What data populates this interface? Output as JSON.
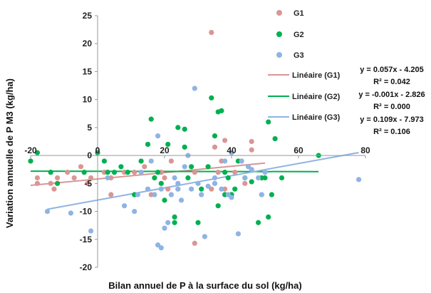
{
  "chart_data": {
    "type": "scatter",
    "xlabel": "Bilan annuel de P à la surface du sol (kg/ha)",
    "ylabel": "Variation annuelle de P M3  (kg/ha)",
    "xlim": [
      -20,
      80
    ],
    "ylim": [
      -20,
      25
    ],
    "x_ticks": [
      "-20",
      "0",
      "20",
      "40",
      "60",
      "80"
    ],
    "y_ticks": [
      "-20",
      "-15",
      "-10",
      "-5",
      "0",
      "5",
      "10",
      "15",
      "20",
      "25"
    ],
    "grid": false,
    "legend_position": "right",
    "series": [
      {
        "name": "G1",
        "color": "#d99694",
        "points": [
          [
            -18,
            -4
          ],
          [
            -18,
            -5
          ],
          [
            -14,
            -5
          ],
          [
            -13,
            -6
          ],
          [
            -12,
            -4
          ],
          [
            -9,
            -3
          ],
          [
            -7,
            -4
          ],
          [
            -5,
            -2
          ],
          [
            -3,
            -5
          ],
          [
            -2,
            -4
          ],
          [
            2,
            -3
          ],
          [
            4,
            -7
          ],
          [
            4,
            -4
          ],
          [
            8,
            -3
          ],
          [
            11,
            -3
          ],
          [
            14,
            -2
          ],
          [
            16,
            -7
          ],
          [
            17,
            -4
          ],
          [
            19,
            -3
          ],
          [
            20,
            -4
          ],
          [
            21,
            -6
          ],
          [
            22,
            -1
          ],
          [
            24,
            -6
          ],
          [
            29,
            -3
          ],
          [
            29,
            -15.7
          ],
          [
            34,
            -6
          ],
          [
            34,
            22
          ],
          [
            35,
            -5
          ],
          [
            35,
            1.5
          ],
          [
            36,
            -3
          ],
          [
            37,
            -1
          ],
          [
            38,
            -6
          ],
          [
            38,
            2.7
          ],
          [
            40,
            -7
          ],
          [
            41,
            -3
          ],
          [
            43,
            -1
          ],
          [
            44,
            -5
          ],
          [
            46,
            1
          ],
          [
            46,
            2.5
          ],
          [
            49,
            -7
          ]
        ]
      },
      {
        "name": "G2",
        "color": "#00b050",
        "points": [
          [
            -20,
            -1
          ],
          [
            -18,
            0.5
          ],
          [
            -14,
            -3
          ],
          [
            -12,
            -5
          ],
          [
            -4,
            -3
          ],
          [
            0,
            0.5
          ],
          [
            2,
            -1
          ],
          [
            3,
            -3
          ],
          [
            5,
            -3
          ],
          [
            7,
            -2
          ],
          [
            9,
            -3
          ],
          [
            11,
            -7
          ],
          [
            13,
            -1
          ],
          [
            15,
            2
          ],
          [
            16,
            6.5
          ],
          [
            17,
            -4
          ],
          [
            18,
            -3
          ],
          [
            19,
            -5
          ],
          [
            20,
            -8
          ],
          [
            21,
            2
          ],
          [
            23,
            -11
          ],
          [
            23,
            -12
          ],
          [
            24,
            5
          ],
          [
            26,
            4.7
          ],
          [
            26,
            1.5
          ],
          [
            27,
            -4
          ],
          [
            28,
            -2
          ],
          [
            30,
            -12
          ],
          [
            31,
            -6
          ],
          [
            33,
            -2
          ],
          [
            34,
            10.3
          ],
          [
            35,
            3.5
          ],
          [
            36,
            7.8
          ],
          [
            36,
            -9
          ],
          [
            37,
            8
          ],
          [
            38,
            -7
          ],
          [
            38,
            -3
          ],
          [
            39,
            -4
          ],
          [
            40,
            -7
          ],
          [
            41,
            -6
          ],
          [
            42,
            -1
          ],
          [
            44,
            -4
          ],
          [
            46,
            -4.7
          ],
          [
            48,
            -12
          ],
          [
            49,
            -4
          ],
          [
            50,
            -4
          ],
          [
            51,
            6
          ],
          [
            51,
            -11
          ],
          [
            52,
            -7
          ],
          [
            53,
            3
          ],
          [
            55,
            -4
          ],
          [
            66,
            0
          ]
        ]
      },
      {
        "name": "G3",
        "color": "#8eb4e3",
        "points": [
          [
            -15,
            -10
          ],
          [
            -8,
            -10.3
          ],
          [
            -2,
            -13.5
          ],
          [
            3,
            -4
          ],
          [
            8,
            -9
          ],
          [
            11,
            -10
          ],
          [
            12,
            -7
          ],
          [
            13,
            -3
          ],
          [
            15,
            -6
          ],
          [
            16,
            -1
          ],
          [
            17,
            -7
          ],
          [
            18,
            3.5
          ],
          [
            18,
            -16
          ],
          [
            19,
            -6
          ],
          [
            19,
            -16.5
          ],
          [
            20,
            -13
          ],
          [
            21,
            -12
          ],
          [
            22,
            -7
          ],
          [
            23,
            -4
          ],
          [
            24,
            -5
          ],
          [
            24,
            -6
          ],
          [
            25,
            -8
          ],
          [
            26,
            -2
          ],
          [
            27,
            0
          ],
          [
            28,
            -6
          ],
          [
            29,
            12
          ],
          [
            30,
            -5
          ],
          [
            31,
            -7
          ],
          [
            32,
            -14.5
          ],
          [
            33,
            -5.5
          ],
          [
            35,
            -5
          ],
          [
            35,
            -4
          ],
          [
            37,
            -6
          ],
          [
            38,
            -1
          ],
          [
            39,
            -7
          ],
          [
            40,
            -7.5
          ],
          [
            40,
            0.5
          ],
          [
            42,
            -14
          ],
          [
            43,
            -1
          ],
          [
            44,
            -4
          ],
          [
            45,
            -2
          ],
          [
            46,
            -2.5
          ],
          [
            48,
            -4
          ],
          [
            49,
            -7
          ],
          [
            50,
            -3
          ],
          [
            78,
            -4.3
          ]
        ]
      }
    ],
    "trendlines": [
      {
        "name": "Linéaire (G1)",
        "color": "#d99694",
        "slope": 0.057,
        "intercept": -4.205,
        "x_range": [
          -20,
          50
        ],
        "equation": "y = 0.057x - 4.205",
        "r2": "R² = 0.042"
      },
      {
        "name": "Linéaire (G2)",
        "color": "#00b050",
        "slope": -0.001,
        "intercept": -2.826,
        "x_range": [
          -20,
          66
        ],
        "equation": "y = -0.001x - 2.826",
        "r2": "R² = 0.000"
      },
      {
        "name": "Linéaire (G3)",
        "color": "#8eb4e3",
        "slope": 0.109,
        "intercept": -7.973,
        "x_range": [
          -15,
          78
        ],
        "equation": "y = 0.109x - 7.973",
        "r2": "R² = 0.106"
      }
    ]
  }
}
